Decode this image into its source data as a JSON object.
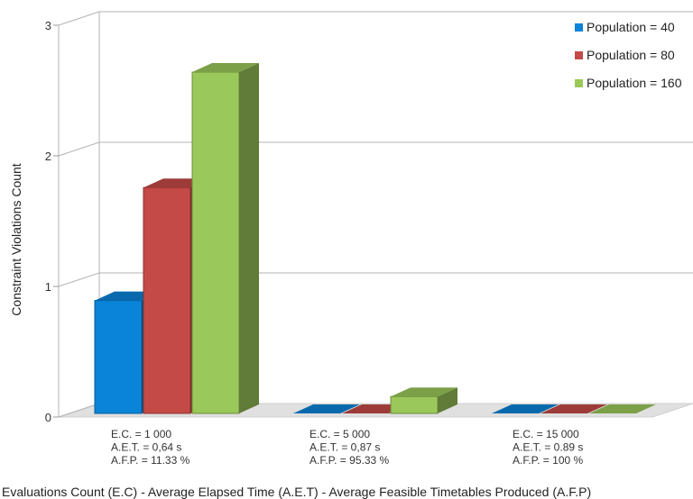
{
  "chart_data": {
    "type": "bar",
    "ylabel": "Constraint Violations Count",
    "xlabel": "Evaluations Count (E.C) - Average Elapsed Time (A.E.T) - Average Feasible Timetables Produced (A.F.P)",
    "ylim": [
      0,
      3
    ],
    "yticks": [
      "0",
      "1",
      "2",
      "3"
    ],
    "grid": true,
    "legend_position": "top-right",
    "categories": [
      [
        "E.C. = 1 000",
        "A.E.T. = 0,64 s",
        "A.F.P. = 11.33 %"
      ],
      [
        "E.C. = 5 000",
        "A.E.T. = 0,87 s",
        "A.F.P. = 95.33 %"
      ],
      [
        "E.C. = 15 000",
        "A.E.T. = 0.89 s",
        "A.F.P. = 100 %"
      ]
    ],
    "series": [
      {
        "name": "Population = 40",
        "color": "#0a84d8",
        "values": [
          0.87,
          0,
          0
        ]
      },
      {
        "name": "Population = 80",
        "color": "#c44a47",
        "values": [
          1.74,
          0,
          0
        ]
      },
      {
        "name": "Population = 160",
        "color": "#9bc85a",
        "values": [
          2.63,
          0.13,
          0
        ]
      }
    ]
  }
}
